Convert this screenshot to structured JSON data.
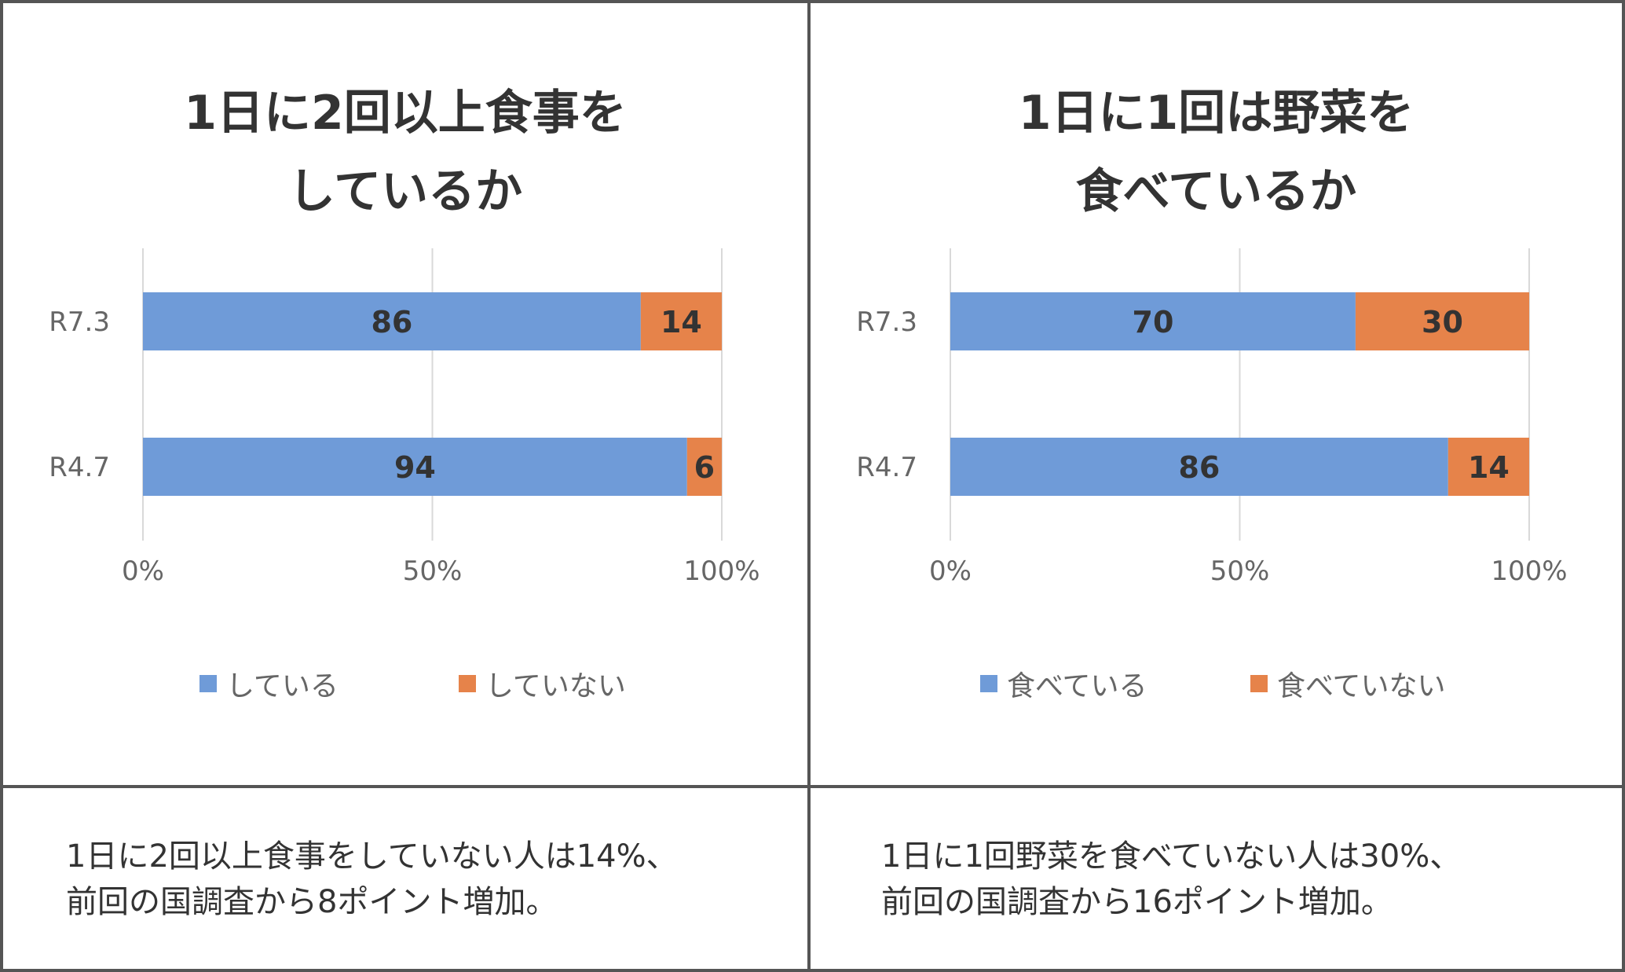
{
  "colors": {
    "series1": "#6f9bd8",
    "series2": "#e6834a",
    "grid": "#d9d9d9",
    "axis_text": "#666666"
  },
  "chart_data": [
    {
      "type": "bar",
      "orientation": "horizontal",
      "stacked": true,
      "title_lines": [
        "1日に2回以上食事を",
        "しているか"
      ],
      "categories": [
        "R7.3",
        "R4.7"
      ],
      "series": [
        {
          "name": "している",
          "values": [
            86,
            94
          ]
        },
        {
          "name": "していない",
          "values": [
            14,
            6
          ]
        }
      ],
      "xlim": [
        0,
        100
      ],
      "xticks": [
        "0%",
        "50%",
        "100%"
      ],
      "grid": true,
      "legend_position": "bottom"
    },
    {
      "type": "bar",
      "orientation": "horizontal",
      "stacked": true,
      "title_lines": [
        "1日に1回は野菜を",
        "食べているか"
      ],
      "categories": [
        "R7.3",
        "R4.7"
      ],
      "series": [
        {
          "name": "食べている",
          "values": [
            70,
            86
          ]
        },
        {
          "name": "食べていない",
          "values": [
            30,
            14
          ]
        }
      ],
      "xlim": [
        0,
        100
      ],
      "xticks": [
        "0%",
        "50%",
        "100%"
      ],
      "grid": true,
      "legend_position": "bottom"
    }
  ],
  "notes": [
    {
      "lines": [
        "1日に2回以上食事をしていない人は14%、",
        "前回の国調査から8ポイント増加。"
      ]
    },
    {
      "lines": [
        "1日に1回野菜を食べていない人は30%、",
        "前回の国調査から16ポイント増加。"
      ]
    }
  ]
}
